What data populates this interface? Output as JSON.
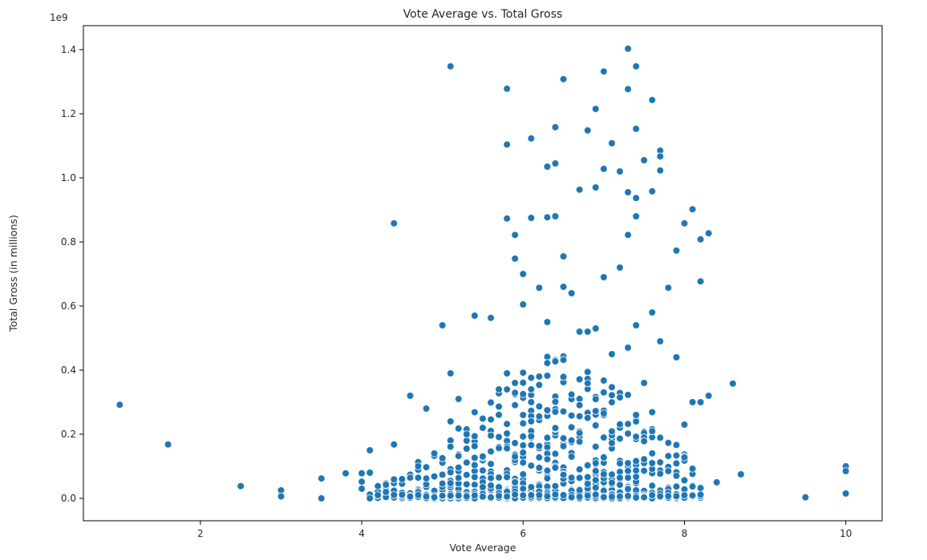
{
  "chart_data": {
    "type": "scatter",
    "title": "Vote Average vs. Total Gross",
    "xlabel": "Vote Average",
    "ylabel": "Total Gross (in millions)",
    "y_offset_label": "1e9",
    "xlim": [
      0.55,
      10.45
    ],
    "ylim": [
      -0.07,
      1.475
    ],
    "x_ticks": [
      2,
      4,
      6,
      8,
      10
    ],
    "x_tick_labels": [
      "2",
      "4",
      "6",
      "8",
      "10"
    ],
    "y_ticks": [
      0.0,
      0.2,
      0.4,
      0.6,
      0.8,
      1.0,
      1.2,
      1.4
    ],
    "y_tick_labels": [
      "0.0",
      "0.2",
      "0.4",
      "0.6",
      "0.8",
      "1.0",
      "1.2",
      "1.4"
    ],
    "grid": false,
    "legend": "none",
    "point_color": "#1f77b4",
    "y_unit_scale": 1000000000,
    "x": [
      1.0,
      1.6,
      2.5,
      3.0,
      3.0,
      3.5,
      3.5,
      3.8,
      4.0,
      4.0,
      4.0,
      4.1,
      4.1,
      4.1,
      4.4,
      4.4,
      5.0,
      5.1,
      5.1,
      5.4,
      5.6,
      5.8,
      5.8,
      5.8,
      5.9,
      5.9,
      6.0,
      6.0,
      6.1,
      6.1,
      6.2,
      6.3,
      6.3,
      6.4,
      6.4,
      6.4,
      6.5,
      6.5,
      6.7,
      6.8,
      6.9,
      6.9,
      7.0,
      7.0,
      7.1,
      7.2,
      7.3,
      7.3,
      7.3,
      7.3,
      7.4,
      7.4,
      7.4,
      7.4,
      7.5,
      7.6,
      7.6,
      7.7,
      7.7,
      7.7,
      7.8,
      7.9,
      8.0,
      8.1,
      8.2,
      8.2,
      8.3,
      8.6,
      8.7,
      9.5,
      10.0,
      10.0,
      10.0,
      7.5,
      6.7,
      6.3,
      7.0,
      6.9,
      7.2,
      6.5,
      7.6,
      5.8,
      6.8,
      7.1,
      7.4,
      5.9,
      6.6,
      7.3,
      6.0,
      7.7,
      6.2,
      4.6,
      4.8,
      5.1,
      5.3,
      4.3,
      4.5,
      4.7,
      4.9,
      8.1,
      8.0,
      7.9,
      8.2,
      4.2,
      8.3,
      8.4,
      5.5,
      5.2,
      5.7
    ],
    "y": [
      0.292,
      0.168,
      0.038,
      0.025,
      0.006,
      0.062,
      0.0,
      0.078,
      0.078,
      0.052,
      0.03,
      0.15,
      0.08,
      0.0,
      0.858,
      0.168,
      0.54,
      1.348,
      0.39,
      0.57,
      0.563,
      1.278,
      1.104,
      0.873,
      0.822,
      0.748,
      0.605,
      0.7,
      1.123,
      0.875,
      0.657,
      0.877,
      1.035,
      1.158,
      1.045,
      0.88,
      1.308,
      0.755,
      0.963,
      1.148,
      1.215,
      0.97,
      1.332,
      1.028,
      1.108,
      1.02,
      1.403,
      1.277,
      0.955,
      0.822,
      1.348,
      1.153,
      0.937,
      0.88,
      1.055,
      1.243,
      0.958,
      1.085,
      1.067,
      1.023,
      0.657,
      0.773,
      0.858,
      0.902,
      0.808,
      0.677,
      0.827,
      0.358,
      0.075,
      0.003,
      0.1,
      0.085,
      0.015,
      0.36,
      0.52,
      0.55,
      0.69,
      0.53,
      0.72,
      0.66,
      0.58,
      0.39,
      0.52,
      0.45,
      0.54,
      0.36,
      0.64,
      0.47,
      0.26,
      0.49,
      0.38,
      0.32,
      0.28,
      0.24,
      0.2,
      0.02,
      0.06,
      0.1,
      0.14,
      0.3,
      0.23,
      0.44,
      0.3,
      0.01,
      0.32,
      0.05,
      0.22,
      0.31,
      0.34
    ],
    "dense_cluster": {
      "x_values": [
        4.1,
        4.2,
        4.3,
        4.4,
        4.5,
        4.6,
        4.7,
        4.8,
        4.9,
        5.0,
        5.1,
        5.2,
        5.3,
        5.4,
        5.5,
        5.6,
        5.7,
        5.8,
        5.9,
        6.0,
        6.1,
        6.2,
        6.3,
        6.4,
        6.5,
        6.6,
        6.7,
        6.8,
        6.9,
        7.0,
        7.1,
        7.2,
        7.3,
        7.4,
        7.5,
        7.6,
        7.7,
        7.8,
        7.9,
        8.0,
        8.1,
        8.2
      ],
      "y_max_values": [
        0.03,
        0.05,
        0.07,
        0.08,
        0.09,
        0.1,
        0.12,
        0.14,
        0.15,
        0.18,
        0.2,
        0.22,
        0.25,
        0.27,
        0.3,
        0.32,
        0.34,
        0.36,
        0.38,
        0.4,
        0.42,
        0.44,
        0.45,
        0.45,
        0.45,
        0.45,
        0.45,
        0.43,
        0.42,
        0.4,
        0.38,
        0.36,
        0.34,
        0.32,
        0.3,
        0.27,
        0.24,
        0.2,
        0.17,
        0.14,
        0.1,
        0.07
      ],
      "points_per_column": [
        3,
        4,
        4,
        5,
        6,
        7,
        7,
        8,
        9,
        10,
        12,
        12,
        13,
        14,
        15,
        16,
        17,
        18,
        18,
        20,
        20,
        21,
        21,
        21,
        21,
        21,
        21,
        20,
        20,
        19,
        18,
        18,
        17,
        16,
        15,
        14,
        12,
        10,
        9,
        8,
        6,
        4
      ]
    }
  }
}
